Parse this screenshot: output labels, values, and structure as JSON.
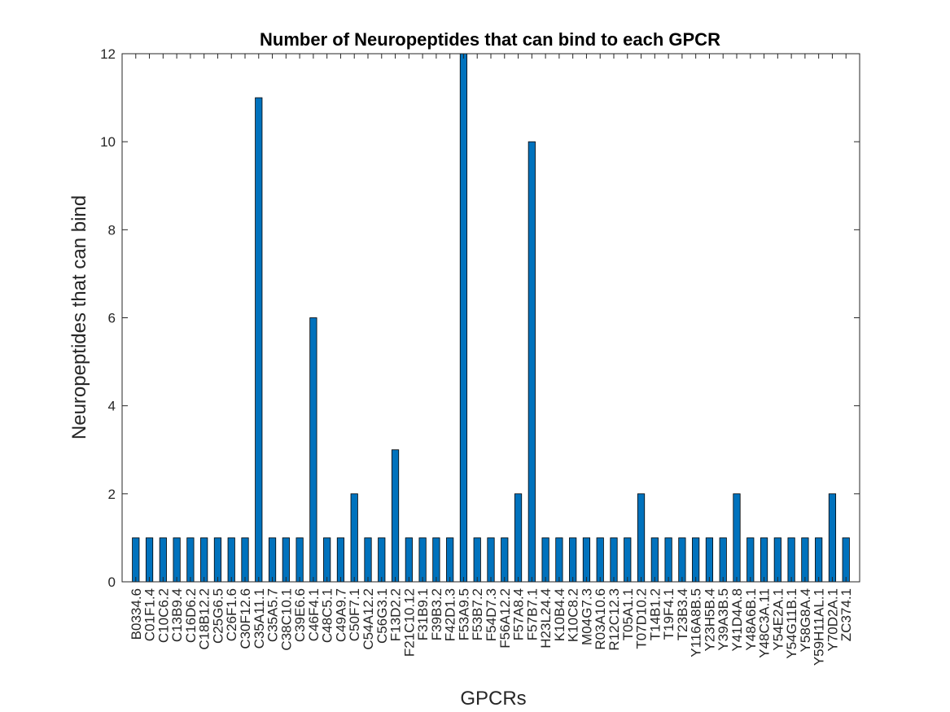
{
  "chart_data": {
    "type": "bar",
    "title": "Number of Neuropeptides that can bind to each GPCR",
    "xlabel": "GPCRs",
    "ylabel": "Neuropeptides that can bind",
    "ylim": [
      0,
      12
    ],
    "yticks": [
      0,
      2,
      4,
      6,
      8,
      10,
      12
    ],
    "grid": false,
    "bar_color": "#0072BD",
    "categories": [
      "B0334.6",
      "C01F1.4",
      "C10C6.2",
      "C13B9.4",
      "C16D6.2",
      "C18B12.2",
      "C25G6.5",
      "C26F1.6",
      "C30F12.6",
      "C35A11.1",
      "C35A5.7",
      "C38C10.1",
      "C39E6.6",
      "C46F4.1",
      "C48C5.1",
      "C49A9.7",
      "C50F7.1",
      "C54A12.2",
      "C56G3.1",
      "F13D2.2",
      "F21C10.12",
      "F31B9.1",
      "F39B3.2",
      "F42D1.3",
      "F53A9.5",
      "F53B7.2",
      "F54D7.3",
      "F56A12.2",
      "F57A8.4",
      "F57B7.1",
      "H23L24.4",
      "K10B4.4",
      "K10C8.2",
      "M04G7.3",
      "R03A10.6",
      "R12C12.3",
      "T05A1.1",
      "T07D10.2",
      "T14B1.2",
      "T19F4.1",
      "T23B3.4",
      "Y116A8B.5",
      "Y23H5B.4",
      "Y39A3B.5",
      "Y41D4A.8",
      "Y48A6B.1",
      "Y48C3A.11",
      "Y54E2A.1",
      "Y54G11B.1",
      "Y58G8A.4",
      "Y59H11AL.1",
      "Y70D2A.1",
      "ZC374.1"
    ],
    "values": [
      1,
      1,
      1,
      1,
      1,
      1,
      1,
      1,
      1,
      11,
      1,
      1,
      1,
      6,
      1,
      1,
      2,
      1,
      1,
      3,
      1,
      1,
      1,
      1,
      12,
      1,
      1,
      1,
      2,
      10,
      1,
      1,
      1,
      1,
      1,
      1,
      1,
      2,
      1,
      1,
      1,
      1,
      1,
      1,
      2,
      1,
      1,
      1,
      1,
      1,
      1,
      2,
      1
    ]
  }
}
